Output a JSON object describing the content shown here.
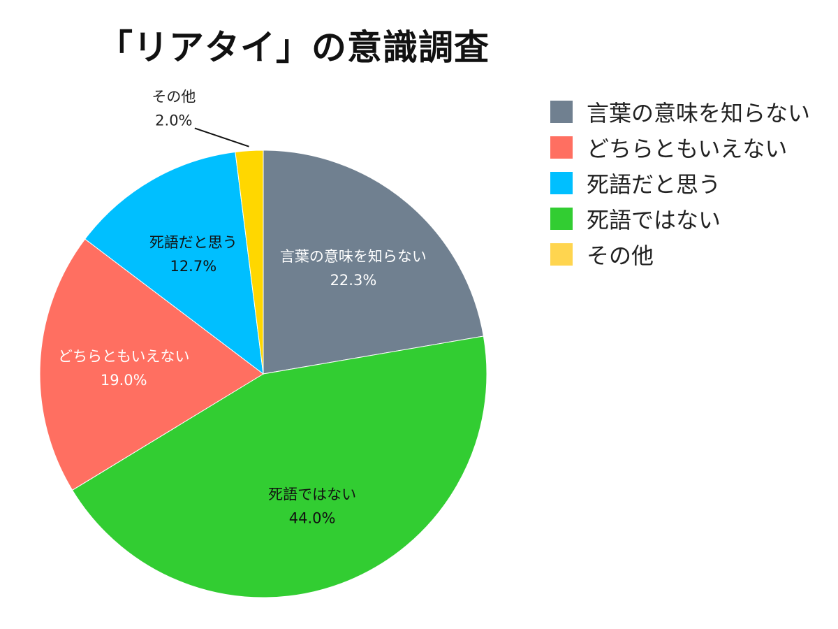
{
  "chart_data": {
    "type": "pie",
    "title": "「リアタイ」の意識調査",
    "unit": "%",
    "start_angle_deg": 0,
    "direction": "clockwise",
    "legend_position": "right",
    "categories": [
      "言葉の意味を知らない",
      "死語ではない",
      "どちらともいえない",
      "死語だと思う",
      "その他"
    ],
    "values": [
      22.3,
      44.0,
      19.0,
      12.7,
      2.0
    ],
    "value_labels": [
      "22.3%",
      "44.0%",
      "19.0%",
      "12.7%",
      "2.0%"
    ],
    "colors": [
      "#708090",
      "#32cd32",
      "#ff6f61",
      "#00bfff",
      "#ffd700"
    ],
    "label_colors": [
      "#ffffff",
      "#111111",
      "#ffffff",
      "#111111",
      "#222222"
    ],
    "outside_label": [
      false,
      false,
      false,
      false,
      true
    ],
    "legend": [
      {
        "label": "言葉の意味を知らない",
        "color": "#708090"
      },
      {
        "label": "どちらともいえない",
        "color": "#ff6f61"
      },
      {
        "label": "死語だと思う",
        "color": "#00bfff"
      },
      {
        "label": "死語ではない",
        "color": "#32cd32"
      },
      {
        "label": "その他",
        "color": "#ffd54f"
      }
    ]
  }
}
